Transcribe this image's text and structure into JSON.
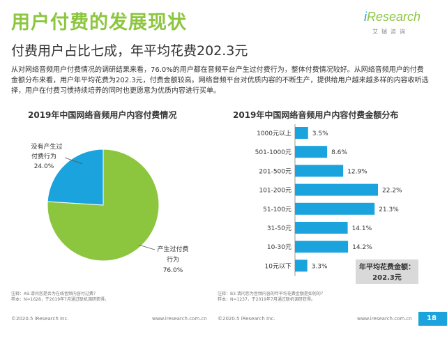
{
  "header": {
    "title": "用户付费的发展现状",
    "subtitle": "付费用户占比七成，年平均花费202.3元"
  },
  "logo": {
    "word_i": "i",
    "word_rest": "Research",
    "sub": "艾瑞咨询"
  },
  "intro_text": "从对网络音频用户付费情况的调研结果来看，76.0%的用户都在音频平台产生过付费行为，整体付费情况较好。从网络音频用户的付费金额分布来看，用户年平均花费为202.3元，付费金额较高。网络音频平台对优质内容的不断生产，提供给用户越来越多样的内容收听选择，用户在付费习惯持续培养的同时也更愿意为优质内容进行买单。",
  "chart_data": [
    {
      "type": "pie",
      "title": "2019年中国网络音频用户内容付费情况",
      "slices": [
        {
          "label_lines": [
            "产生过付费",
            "行为"
          ],
          "value": 76.0,
          "value_label": "76.0%"
        },
        {
          "label_lines": [
            "没有产生过",
            "付费行为"
          ],
          "value": 24.0,
          "value_label": "24.0%"
        }
      ],
      "colors": [
        "#8cc63f",
        "#1aa3dd"
      ]
    },
    {
      "type": "bar",
      "orientation": "horizontal",
      "title": "2019年中国网络音频用户内容付费金额分布",
      "categories": [
        "1000元以上",
        "501-1000元",
        "201-500元",
        "101-200元",
        "51-100元",
        "31-50元",
        "10-30元",
        "10元以下"
      ],
      "values": [
        3.5,
        8.6,
        12.9,
        22.2,
        21.3,
        14.1,
        14.2,
        3.3
      ],
      "value_labels": [
        "3.5%",
        "8.6%",
        "12.9%",
        "22.2%",
        "21.3%",
        "14.1%",
        "14.2%",
        "3.3%"
      ],
      "color": "#1aa3dd",
      "callout": {
        "line1": "年平均花费金额：",
        "line2": "202.3元"
      }
    }
  ],
  "notes": {
    "left": [
      "注释：A9.请问您是否为在线音频内容付过费？",
      "样本：N=1628，于2019年7月通过联机调研获得。"
    ],
    "right": [
      "注释：B3.请问您为音频内容的年平均花费金额是如何的？",
      "样本：N=1237，于2019年7月通过联机调研获得。"
    ]
  },
  "footer": {
    "copyright": "©2020.5 iResearch Inc.",
    "url": "www.iresearch.com.cn",
    "page_number": "18"
  }
}
